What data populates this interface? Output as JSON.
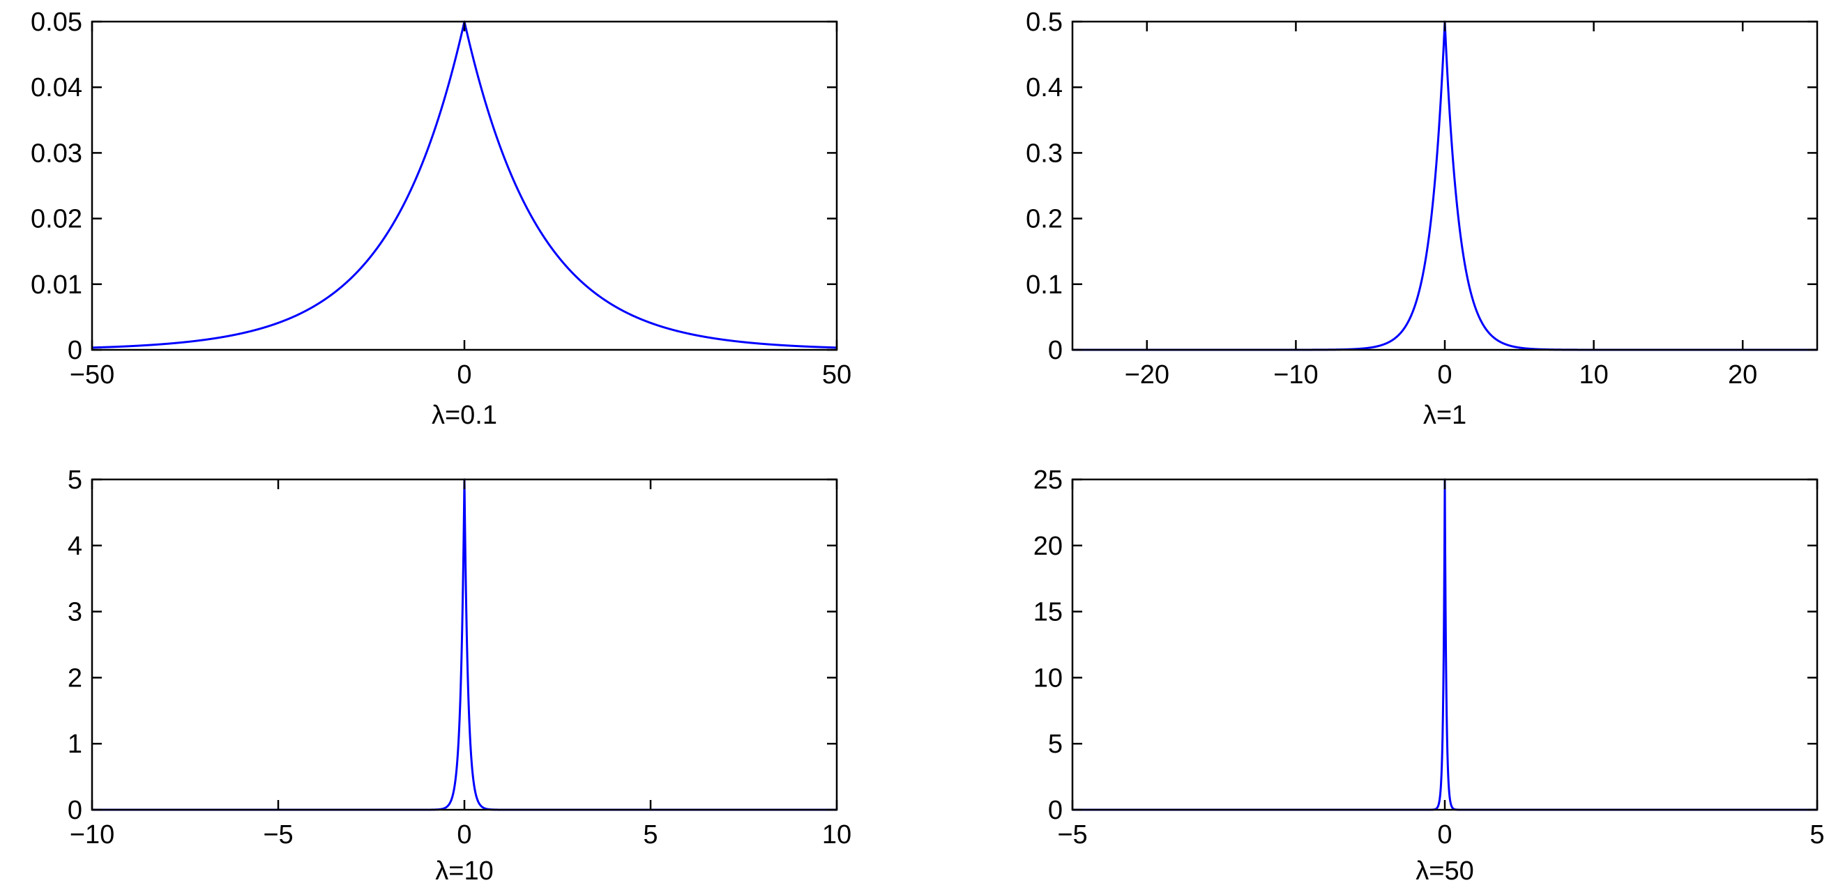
{
  "chart_data": [
    {
      "type": "line",
      "xlabel": "λ=0.1",
      "lambda": 0.1,
      "xlim": [
        -50,
        50
      ],
      "ylim": [
        0,
        0.05
      ],
      "xticks": [
        "−50",
        "0",
        "50"
      ],
      "xtick_values": [
        -50,
        0,
        50
      ],
      "yticks": [
        "0",
        "0.01",
        "0.02",
        "0.03",
        "0.04",
        "0.05"
      ],
      "ytick_values": [
        0,
        0.01,
        0.02,
        0.03,
        0.04,
        0.05
      ],
      "series": [
        {
          "color": "#0000ff",
          "peak": 0.05
        }
      ]
    },
    {
      "type": "line",
      "xlabel": "λ=1",
      "lambda": 1,
      "xlim": [
        -25,
        25
      ],
      "ylim": [
        0,
        0.5
      ],
      "xticks": [
        "−20",
        "−10",
        "0",
        "10",
        "20"
      ],
      "xtick_values": [
        -20,
        -10,
        0,
        10,
        20
      ],
      "yticks": [
        "0",
        "0.1",
        "0.2",
        "0.3",
        "0.4",
        "0.5"
      ],
      "ytick_values": [
        0,
        0.1,
        0.2,
        0.3,
        0.4,
        0.5
      ],
      "series": [
        {
          "color": "#0000ff",
          "peak": 0.5
        }
      ]
    },
    {
      "type": "line",
      "xlabel": "λ=10",
      "lambda": 10,
      "xlim": [
        -10,
        10
      ],
      "ylim": [
        0,
        5
      ],
      "xticks": [
        "−10",
        "−5",
        "0",
        "5",
        "10"
      ],
      "xtick_values": [
        -10,
        -5,
        0,
        5,
        10
      ],
      "yticks": [
        "0",
        "1",
        "2",
        "3",
        "4",
        "5"
      ],
      "ytick_values": [
        0,
        1,
        2,
        3,
        4,
        5
      ],
      "series": [
        {
          "color": "#0000ff",
          "peak": 5
        }
      ]
    },
    {
      "type": "line",
      "xlabel": "λ=50",
      "lambda": 50,
      "xlim": [
        -5,
        5
      ],
      "ylim": [
        0,
        25
      ],
      "xticks": [
        "−5",
        "0",
        "5"
      ],
      "xtick_values": [
        -5,
        0,
        5
      ],
      "yticks": [
        "0",
        "5",
        "10",
        "15",
        "20",
        "25"
      ],
      "ytick_values": [
        0,
        5,
        10,
        15,
        20,
        25
      ],
      "series": [
        {
          "color": "#0000ff",
          "peak": 25
        }
      ]
    }
  ]
}
